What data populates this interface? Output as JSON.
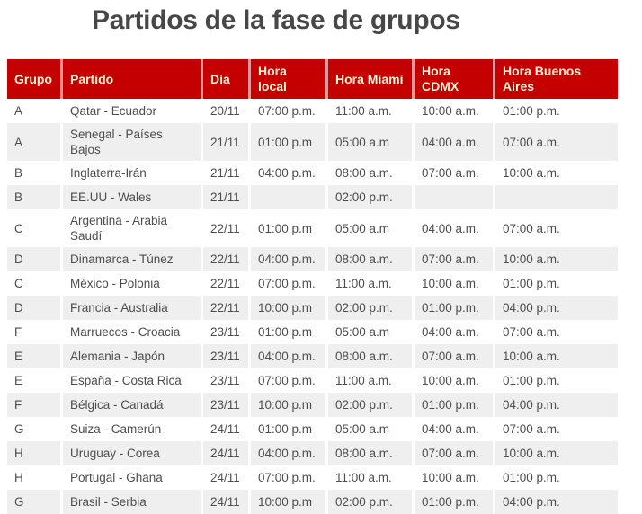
{
  "title": "Partidos de la fase de grupos",
  "colors": {
    "header_bg": "#c40000",
    "header_text": "#fbf2d7",
    "header_separator": "#e59999",
    "row_alt_bg": "#efefef",
    "body_text": "#4d4d4d",
    "title_text": "#474747"
  },
  "table": {
    "columns": [
      {
        "key": "grupo",
        "label": "Grupo",
        "width": 59
      },
      {
        "key": "partido",
        "label": "Partido",
        "width": 156
      },
      {
        "key": "dia",
        "label": "Día",
        "width": 53
      },
      {
        "key": "hora_local",
        "label": "Hora local",
        "width": 86
      },
      {
        "key": "hora_miami",
        "label": "Hora Miami",
        "width": 96
      },
      {
        "key": "hora_cdmx",
        "label": "Hora CDMX",
        "width": 90
      },
      {
        "key": "hora_buenos_aires",
        "label": "Hora Buenos Aires",
        "width": 139
      }
    ],
    "rows": [
      {
        "grupo": "A",
        "partido": "Qatar - Ecuador",
        "dia": "20/11",
        "hora_local": "07:00 p.m.",
        "hora_miami": "11:00 a.m.",
        "hora_cdmx": "10:00 a.m.",
        "hora_buenos_aires": "01:00 p.m."
      },
      {
        "grupo": "A",
        "partido": "Senegal - Países Bajos",
        "dia": "21/11",
        "hora_local": "01:00 p.m",
        "hora_miami": "05:00 a.m",
        "hora_cdmx": "04:00 a.m.",
        "hora_buenos_aires": "07:00 a.m."
      },
      {
        "grupo": "B",
        "partido": "Inglaterra-Irán",
        "dia": "21/11",
        "hora_local": "04:00 p.m.",
        "hora_miami": "08:00 a.m.",
        "hora_cdmx": "07:00 a.m.",
        "hora_buenos_aires": "10:00 a.m."
      },
      {
        "grupo": "B",
        "partido": "EE.UU - Wales",
        "dia": "21/11",
        "hora_local": "",
        "hora_miami": "02:00 p.m.",
        "hora_cdmx": "",
        "hora_buenos_aires": ""
      },
      {
        "grupo": "C",
        "partido": "Argentina - Arabia Saudí",
        "dia": "22/11",
        "hora_local": "01:00 p.m",
        "hora_miami": "05:00 a.m",
        "hora_cdmx": "04:00 a.m.",
        "hora_buenos_aires": "07:00 a.m."
      },
      {
        "grupo": "D",
        "partido": "Dinamarca - Túnez",
        "dia": "22/11",
        "hora_local": "04:00 p.m.",
        "hora_miami": "08:00 a.m.",
        "hora_cdmx": "07:00 a.m.",
        "hora_buenos_aires": "10:00 a.m."
      },
      {
        "grupo": "C",
        "partido": "México - Polonia",
        "dia": "22/11",
        "hora_local": "07:00 p.m.",
        "hora_miami": "11:00 a.m.",
        "hora_cdmx": "10:00 a.m.",
        "hora_buenos_aires": "01:00 p.m."
      },
      {
        "grupo": "D",
        "partido": "Francia - Australia",
        "dia": "22/11",
        "hora_local": "10:00 p.m",
        "hora_miami": "02:00 p.m.",
        "hora_cdmx": "01:00 p.m.",
        "hora_buenos_aires": "04:00 p.m."
      },
      {
        "grupo": "F",
        "partido": "Marruecos - Croacia",
        "dia": "23/11",
        "hora_local": "01:00 p.m",
        "hora_miami": "05:00 a.m",
        "hora_cdmx": "04:00 a.m.",
        "hora_buenos_aires": "07:00 a.m."
      },
      {
        "grupo": "E",
        "partido": "Alemania - Japón",
        "dia": "23/11",
        "hora_local": "04:00 p.m.",
        "hora_miami": "08:00 a.m.",
        "hora_cdmx": "07:00 a.m.",
        "hora_buenos_aires": "10:00 a.m."
      },
      {
        "grupo": "E",
        "partido": "España - Costa Rica",
        "dia": "23/11",
        "hora_local": "07:00 p.m.",
        "hora_miami": "11:00 a.m.",
        "hora_cdmx": "10:00 a.m.",
        "hora_buenos_aires": "01:00 p.m."
      },
      {
        "grupo": "F",
        "partido": "Bélgica - Canadá",
        "dia": "23/11",
        "hora_local": "10:00 p.m",
        "hora_miami": "02:00 p.m.",
        "hora_cdmx": "01:00 p.m.",
        "hora_buenos_aires": "04:00 p.m."
      },
      {
        "grupo": "G",
        "partido": "Suiza - Camerún",
        "dia": "24/11",
        "hora_local": "01:00 p.m",
        "hora_miami": "05:00 a.m",
        "hora_cdmx": "04:00 a.m.",
        "hora_buenos_aires": "07:00 a.m."
      },
      {
        "grupo": "H",
        "partido": "Uruguay - Corea",
        "dia": "24/11",
        "hora_local": "04:00 p.m.",
        "hora_miami": "08:00 a.m.",
        "hora_cdmx": "07:00 a.m.",
        "hora_buenos_aires": "10:00 a.m."
      },
      {
        "grupo": "H",
        "partido": "Portugal - Ghana",
        "dia": "24/11",
        "hora_local": "07:00 p.m.",
        "hora_miami": "11:00 a.m.",
        "hora_cdmx": "10:00 a.m.",
        "hora_buenos_aires": "01:00 p.m."
      },
      {
        "grupo": "G",
        "partido": "Brasil - Serbia",
        "dia": "24/11",
        "hora_local": "10:00 p.m",
        "hora_miami": "02:00 p.m.",
        "hora_cdmx": "01:00 p.m.",
        "hora_buenos_aires": "04:00 p.m."
      }
    ]
  }
}
